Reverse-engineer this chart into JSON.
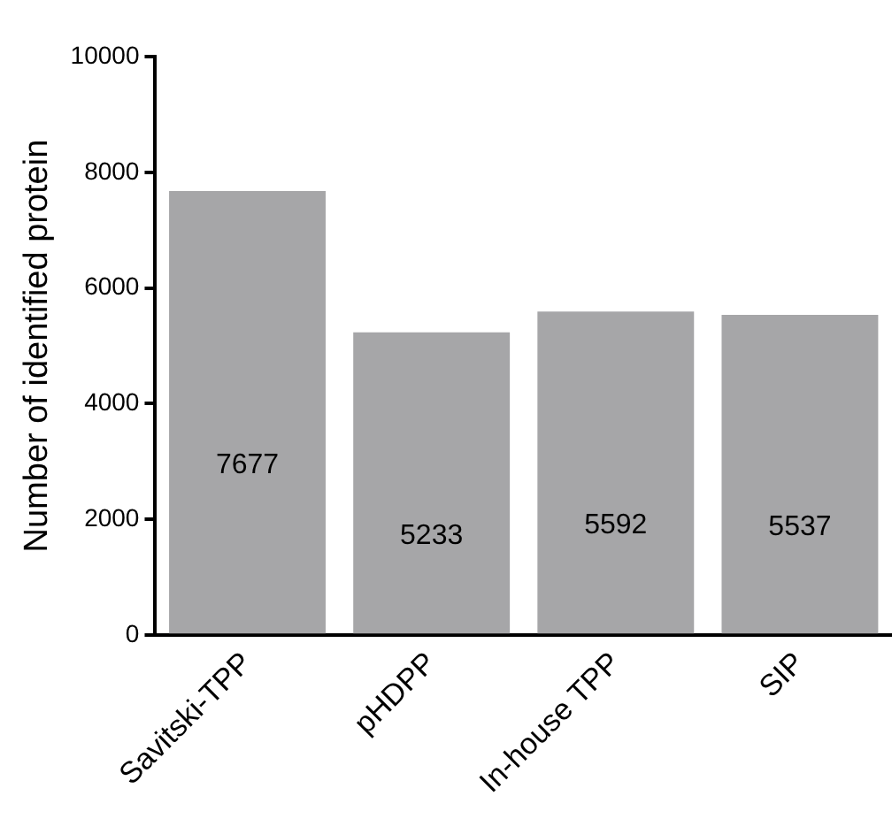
{
  "chart_data": {
    "type": "bar",
    "ylabel": "Number of identified protein",
    "categories": [
      "Savitski-TPP",
      "pHDPP",
      "In-house TPP",
      "SIP"
    ],
    "values": [
      7677,
      5233,
      5592,
      5537
    ],
    "color": "#a6a6a8",
    "ylim": [
      0,
      10000
    ],
    "yticks": [
      0,
      2000,
      4000,
      6000,
      8000,
      10000
    ],
    "grid": false,
    "legend": false,
    "data_labels": true
  }
}
